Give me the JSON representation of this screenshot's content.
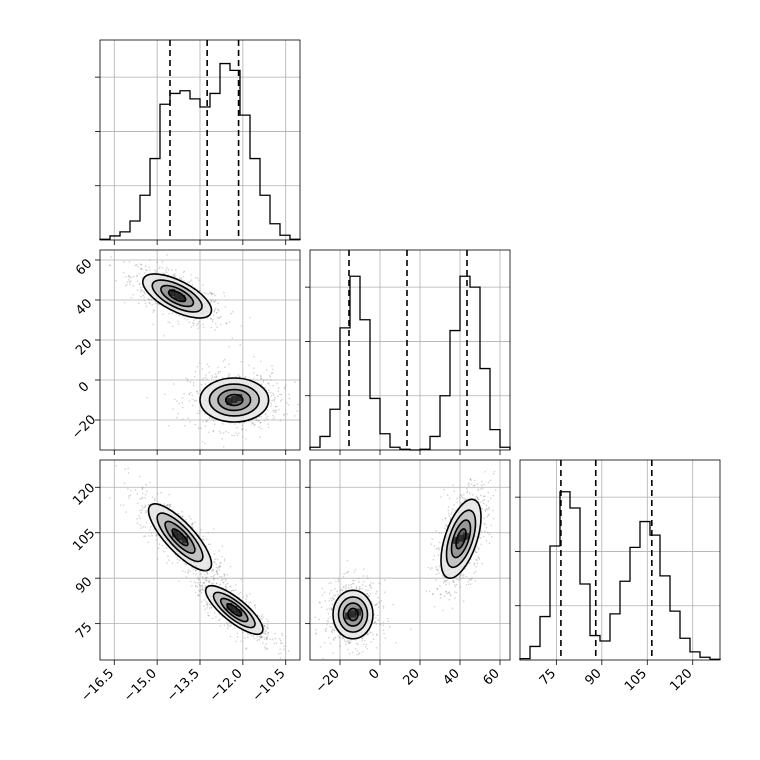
{
  "chart_data": {
    "type": "corner",
    "grid": true,
    "colors": {
      "line": "#000000",
      "grid": "#b0b0b0",
      "points": "#808080"
    },
    "parameters": [
      {
        "range": [
          -17.0,
          -10.0
        ],
        "ticks": [
          -16.5,
          -15.0,
          -13.5,
          -12.0,
          -10.5
        ],
        "tick_labels": [
          "−16.5",
          "−15.0",
          "−13.5",
          "−12.0",
          "−10.5"
        ]
      },
      {
        "range": [
          -35,
          65
        ],
        "ticks": [
          -20,
          0,
          20,
          40,
          60
        ],
        "tick_labels": [
          "−20",
          "0",
          "20",
          "40",
          "60"
        ]
      },
      {
        "range": [
          63,
          129
        ],
        "ticks": [
          75,
          90,
          105,
          120
        ],
        "tick_labels": [
          "75",
          "90",
          "105",
          "120"
        ]
      }
    ],
    "histograms": [
      {
        "param": 0,
        "ymax": 1400,
        "edges": [
          -17.0,
          -16.65,
          -16.3,
          -15.95,
          -15.6,
          -15.25,
          -14.9,
          -14.55,
          -14.2,
          -13.85,
          -13.5,
          -13.15,
          -12.8,
          -12.45,
          -12.1,
          -11.75,
          -11.4,
          -11.05,
          -10.7,
          -10.35,
          -10.0
        ],
        "counts": [
          5,
          30,
          60,
          140,
          330,
          600,
          1000,
          1080,
          1100,
          1040,
          980,
          1080,
          1300,
          1250,
          920,
          600,
          330,
          120,
          35,
          5
        ],
        "quantiles": [
          -14.55,
          -13.25,
          -12.15
        ]
      },
      {
        "param": 1,
        "ymax": 1400,
        "edges": [
          -35,
          -30,
          -25,
          -20,
          -15,
          -10,
          -5,
          0,
          5,
          10,
          15,
          20,
          25,
          30,
          35,
          40,
          45,
          50,
          55,
          60,
          65
        ],
        "counts": [
          20,
          100,
          300,
          900,
          1280,
          960,
          380,
          120,
          20,
          5,
          0,
          5,
          100,
          400,
          880,
          1280,
          1200,
          600,
          150,
          20
        ],
        "quantiles": [
          -15.5,
          13.5,
          43.5
        ]
      },
      {
        "param": 2,
        "ymax": 1400,
        "edges": [
          63,
          66.3,
          69.6,
          72.9,
          76.2,
          79.5,
          82.8,
          86.1,
          89.4,
          92.7,
          96,
          99.3,
          102.6,
          105.9,
          109.2,
          112.5,
          115.8,
          119.1,
          122.4,
          125.7,
          129
        ],
        "counts": [
          10,
          100,
          320,
          840,
          1240,
          1120,
          560,
          180,
          140,
          340,
          580,
          830,
          1020,
          920,
          620,
          360,
          160,
          60,
          20,
          5
        ],
        "quantiles": [
          76.5,
          88.0,
          106.5
        ]
      }
    ],
    "pairs": [
      {
        "x_param": 0,
        "y_param": 1,
        "modes": [
          {
            "center": [
              -14.3,
              42.0
            ],
            "sd": [
              0.6,
              5.5
            ],
            "corr": -0.65
          },
          {
            "center": [
              -12.3,
              -10.0
            ],
            "sd": [
              0.6,
              5.5
            ],
            "corr": 0.0
          }
        ]
      },
      {
        "x_param": 0,
        "y_param": 2,
        "modes": [
          {
            "center": [
              -14.2,
              103.5
            ],
            "sd": [
              0.55,
              5.5
            ],
            "corr": -0.8
          },
          {
            "center": [
              -12.3,
              79.5
            ],
            "sd": [
              0.5,
              4.0
            ],
            "corr": -0.8
          }
        ]
      },
      {
        "x_param": 1,
        "y_param": 2,
        "modes": [
          {
            "center": [
              -13.5,
              78.0
            ],
            "sd": [
              5.0,
              4.0
            ],
            "corr": 0.0
          },
          {
            "center": [
              40.5,
              103.0
            ],
            "sd": [
              5.0,
              6.5
            ],
            "corr": 0.55
          }
        ]
      }
    ]
  }
}
